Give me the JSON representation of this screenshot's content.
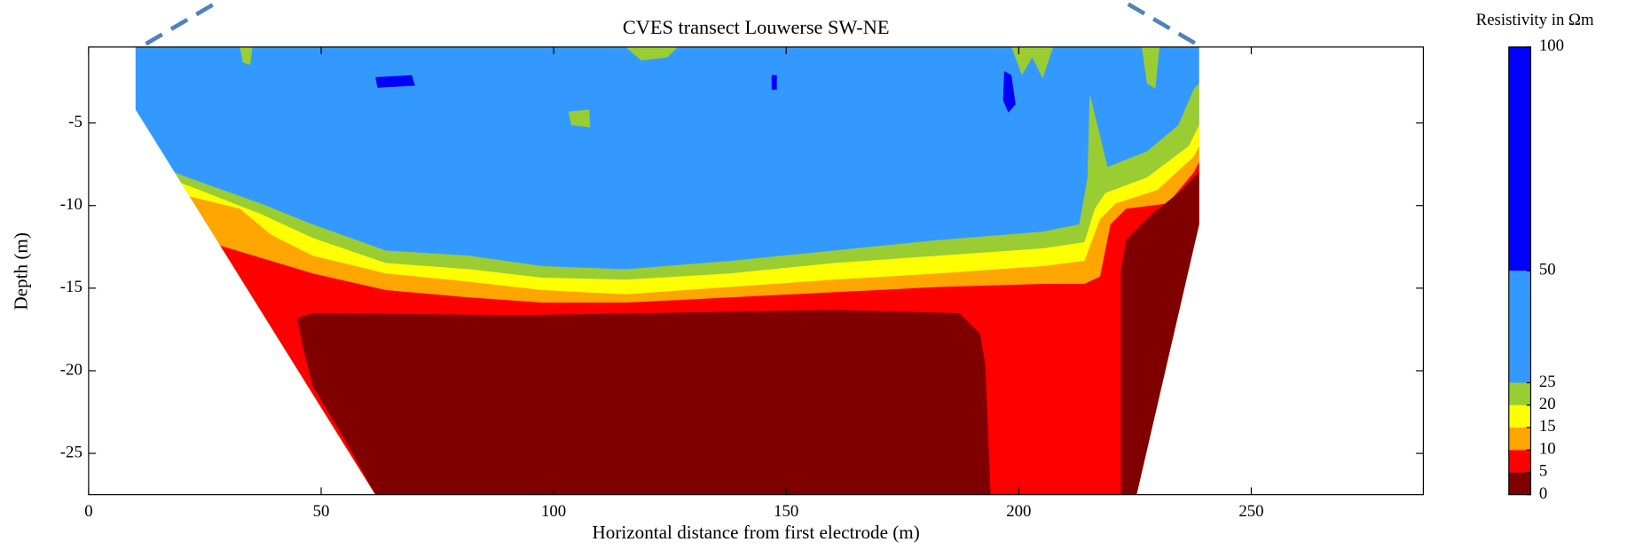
{
  "chart_data": {
    "type": "contour",
    "title": "CVES transect Louwerse SW-NE",
    "xlabel": "Horizontal distance from first electrode (m)",
    "ylabel": "Depth (m)",
    "xlim": [
      0,
      287
    ],
    "xticks": [
      0,
      50,
      100,
      150,
      200,
      250
    ],
    "ylim": [
      -27.5,
      -0.4
    ],
    "yticks": [
      -5,
      -10,
      -15,
      -20,
      -25
    ],
    "colorbar": {
      "label": "Resistivity in Ωm",
      "levels": [
        0,
        5,
        10,
        15,
        20,
        25,
        50,
        100
      ],
      "colors": [
        "#800000",
        "#ff0000",
        "#ffa500",
        "#ffff00",
        "#9acd32",
        "#3399ff",
        "#0000ff"
      ]
    }
  }
}
